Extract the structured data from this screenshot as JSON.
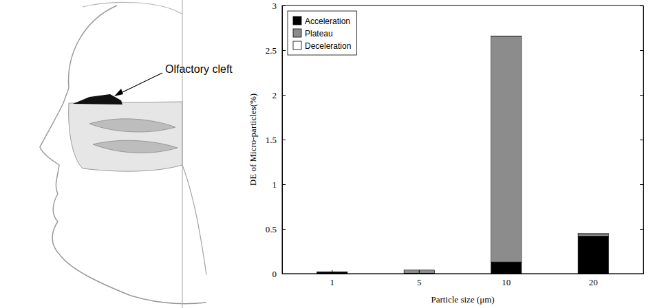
{
  "chart_data": {
    "type": "bar",
    "stacked": true,
    "x_label": "Particle size (μm)",
    "y_label": "DE of Micro-particles(%)",
    "categories": [
      "1",
      "5",
      "10",
      "20"
    ],
    "series": [
      {
        "name": "Acceleration",
        "color": "#000000",
        "values": [
          0.015,
          0.005,
          0.13,
          0.42
        ]
      },
      {
        "name": "Plateau",
        "color": "#8c8c8c",
        "values": [
          0.005,
          0.035,
          2.52,
          0.02
        ]
      },
      {
        "name": "Deceleration",
        "color": "#ffffff",
        "values": [
          0,
          0,
          0.01,
          0.01
        ]
      }
    ],
    "ylim": [
      0,
      3
    ],
    "yticks": [
      0,
      0.5,
      1,
      1.5,
      2,
      2.5,
      3
    ],
    "legend": "upper left",
    "grid": false
  },
  "illustration": {
    "label": "Olfactory cleft"
  }
}
